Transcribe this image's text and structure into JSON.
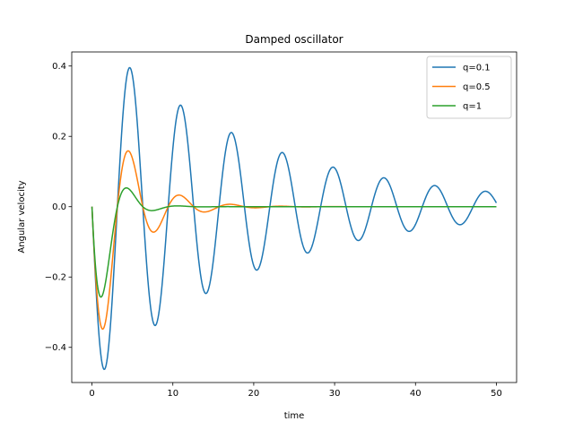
{
  "chart_data": {
    "type": "line",
    "title": "Damped oscillator",
    "xlabel": "time",
    "ylabel": "Angular velocity",
    "xlim": [
      -2.5,
      52.5
    ],
    "ylim": [
      -0.5,
      0.44
    ],
    "xticks": [
      0,
      10,
      20,
      30,
      40,
      50
    ],
    "xtick_labels": [
      "0",
      "10",
      "20",
      "30",
      "40",
      "50"
    ],
    "yticks": [
      -0.4,
      -0.2,
      0.0,
      0.2,
      0.4
    ],
    "ytick_labels": [
      "−0.4",
      "−0.2",
      "0.0",
      "0.2",
      "0.4"
    ],
    "grid": false,
    "legend_position": "upper-right",
    "series": [
      {
        "name": "q=0.1",
        "color": "#1f77b4",
        "model": {
          "amplitude": 0.5,
          "decay": 0.05,
          "omega": 1.0
        }
      },
      {
        "name": "q=0.5",
        "color": "#ff7f0e",
        "model": {
          "amplitude": 0.5,
          "decay": 0.25,
          "omega": 1.0
        }
      },
      {
        "name": "q=1",
        "color": "#2ca02c",
        "model": {
          "amplitude": 0.5,
          "decay": 0.5,
          "omega": 1.0
        }
      }
    ],
    "x_range": [
      0,
      50
    ]
  }
}
